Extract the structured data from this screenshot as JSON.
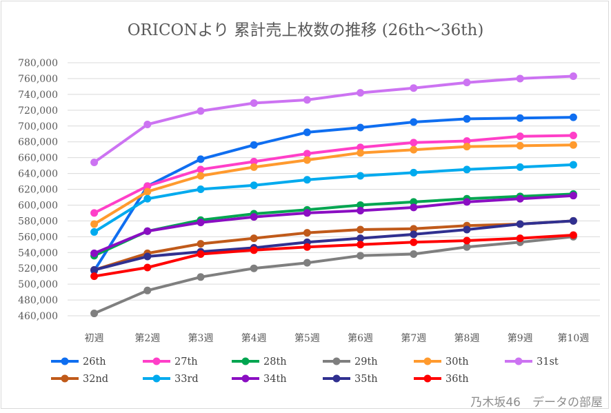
{
  "watermark": "乃木坂46　データの部屋",
  "chart_data": {
    "type": "line",
    "title": "ORICONより 累計売上枚数の推移 (26th〜36th)",
    "xlabel": "",
    "ylabel": "",
    "categories": [
      "初週",
      "第2週",
      "第3週",
      "第4週",
      "第5週",
      "第6週",
      "第7週",
      "第8週",
      "第9週",
      "第10週"
    ],
    "ylim": [
      460000,
      780000
    ],
    "yticks": [
      "460,000",
      "480,000",
      "500,000",
      "520,000",
      "540,000",
      "560,000",
      "580,000",
      "600,000",
      "620,000",
      "640,000",
      "660,000",
      "680,000",
      "700,000",
      "720,000",
      "740,000",
      "760,000",
      "780,000"
    ],
    "grid": true,
    "legend_position": "bottom",
    "series": [
      {
        "name": "26th",
        "color": "#0f6ef0",
        "values": [
          517000,
          624000,
          658000,
          676000,
          692000,
          698000,
          705000,
          709000,
          710000,
          711000
        ]
      },
      {
        "name": "27th",
        "color": "#ff3fc8",
        "values": [
          590000,
          624000,
          645000,
          655000,
          665000,
          673000,
          679000,
          681000,
          687000,
          688000
        ]
      },
      {
        "name": "28th",
        "color": "#00a550",
        "values": [
          536000,
          567000,
          581000,
          589000,
          594000,
          600000,
          604000,
          608000,
          611000,
          614000
        ]
      },
      {
        "name": "29th",
        "color": "#7f7f7f",
        "values": [
          463000,
          492000,
          509000,
          520000,
          527000,
          536000,
          538000,
          547000,
          553000,
          560000
        ]
      },
      {
        "name": "30th",
        "color": "#ff9a2e",
        "values": [
          576000,
          617000,
          637000,
          648000,
          657000,
          666000,
          670000,
          674000,
          675000,
          676000
        ]
      },
      {
        "name": "31st",
        "color": "#cc73f2",
        "values": [
          654000,
          702000,
          719000,
          729000,
          733000,
          742000,
          748000,
          755000,
          760000,
          763000
        ]
      },
      {
        "name": "32nd",
        "color": "#c05a1a",
        "values": [
          518000,
          539000,
          551000,
          558000,
          565000,
          569000,
          570000,
          574000,
          576000,
          580000
        ]
      },
      {
        "name": "33rd",
        "color": "#00aaee",
        "values": [
          566000,
          608000,
          620000,
          625000,
          632000,
          637000,
          641000,
          645000,
          648000,
          651000
        ]
      },
      {
        "name": "34th",
        "color": "#8a0ec2",
        "values": [
          539000,
          567000,
          578000,
          585000,
          590000,
          593000,
          597000,
          604000,
          608000,
          612000
        ]
      },
      {
        "name": "35th",
        "color": "#303090",
        "values": [
          518000,
          535000,
          541000,
          546000,
          553000,
          558000,
          563000,
          569000,
          576000,
          580000
        ]
      },
      {
        "name": "36th",
        "color": "#ff0000",
        "values": [
          510000,
          521000,
          538000,
          543000,
          547000,
          550000,
          553000,
          555000,
          558000,
          562000
        ]
      }
    ]
  }
}
